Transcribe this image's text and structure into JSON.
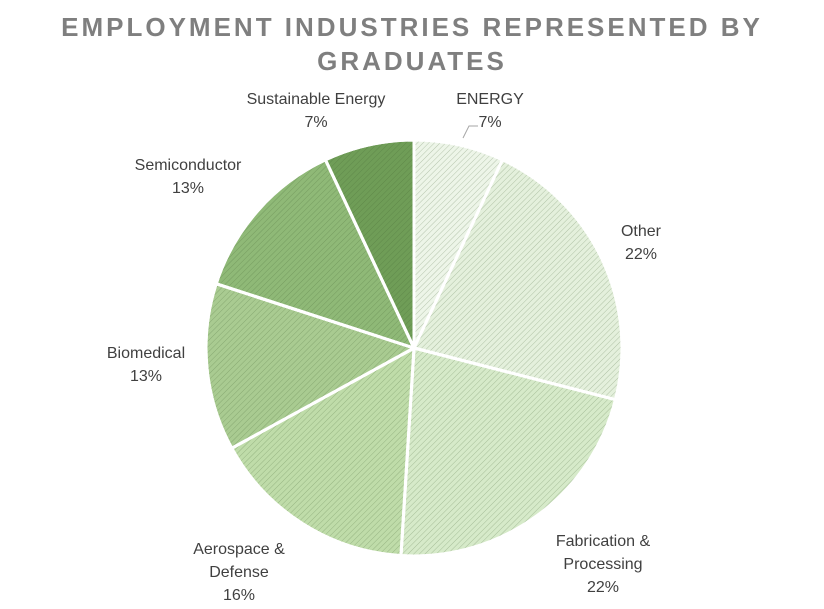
{
  "chart_data": {
    "type": "pie",
    "title": "EMPLOYMENT INDUSTRIES REPRESENTED BY GRADUATES",
    "start_angle_deg": 0,
    "direction": "clockwise",
    "slices": [
      {
        "label": "ENERGY",
        "value": 7,
        "display": "7%",
        "color": "#edf5e8"
      },
      {
        "label": "Other",
        "value": 22,
        "display": "22%",
        "color": "#e4f0dc"
      },
      {
        "label": "Fabrication & Processing",
        "value": 22,
        "display": "22%",
        "color": "#d6eac9"
      },
      {
        "label": "Aerospace & Defense",
        "value": 16,
        "display": "16%",
        "color": "#bfdca9"
      },
      {
        "label": "Biomedical",
        "value": 13,
        "display": "13%",
        "color": "#a9cb91"
      },
      {
        "label": "Semiconductor",
        "value": 13,
        "display": "13%",
        "color": "#8fb977"
      },
      {
        "label": "Sustainable Energy",
        "value": 7,
        "display": "7%",
        "color": "#6f9d57"
      }
    ],
    "legend": "none",
    "labels": "outside"
  }
}
